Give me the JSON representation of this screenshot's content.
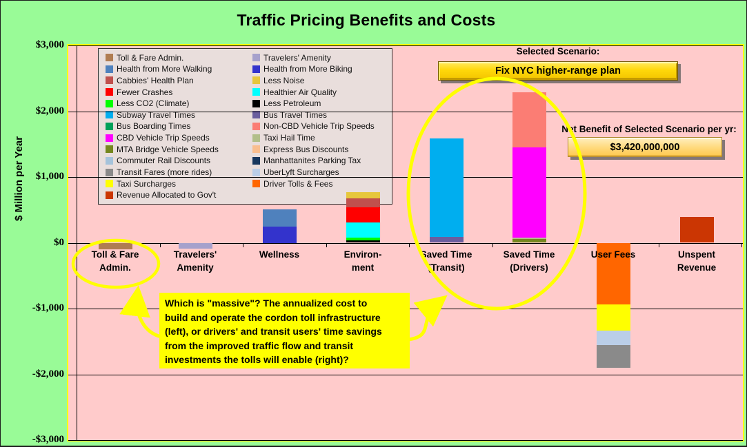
{
  "title": "Traffic Pricing Benefits and Costs",
  "scenario": {
    "label": "Selected Scenario:",
    "button_label": "Fix NYC higher-range plan",
    "net_benefit_label": "Net Benefit of Selected Scenario per yr:",
    "net_benefit_value": "$3,420,000,000"
  },
  "callout": {
    "text": "Which is \"massive\"? The annualized cost to\nbuild and operate the cordon toll infrastructure\n(left), or drivers' and transit users' time  savings\nfrom the improved traffic flow and transit\ninvestments the tolls will enable (right)?"
  },
  "colors": {
    "page_bg": "#99FB97",
    "plot_bg": "#FFCBCB",
    "plot_border": "#FFFF00",
    "highlight": "#FFFF00",
    "scenario_button": "#FFD80A",
    "net_benefit_box": "#FFD97A"
  },
  "legend": {
    "items": [
      {
        "label": "Toll & Fare Admin.",
        "color": "#B07D52"
      },
      {
        "label": "Travelers' Amenity",
        "color": "#A6A1CC"
      },
      {
        "label": "Health from More Walking",
        "color": "#4F81BD"
      },
      {
        "label": "Health from More Biking",
        "color": "#3333CC"
      },
      {
        "label": "Cabbies' Health Plan",
        "color": "#C0504D"
      },
      {
        "label": "Less Noise",
        "color": "#E6C73C"
      },
      {
        "label": "Fewer Crashes",
        "color": "#FF0000"
      },
      {
        "label": "Healthier Air Quality",
        "color": "#00FFFF"
      },
      {
        "label": "Less CO2 (Climate)",
        "color": "#00FF00"
      },
      {
        "label": "Less Petroleum",
        "color": "#000000"
      },
      {
        "label": "Subway Travel Times",
        "color": "#00AEEF"
      },
      {
        "label": "Bus Travel Times",
        "color": "#6A5E9E"
      },
      {
        "label": "Bus Boarding Times",
        "color": "#00A05A"
      },
      {
        "label": "Non-CBD Vehicle Trip Speeds",
        "color": "#FB7D74"
      },
      {
        "label": "CBD Vehicle Trip Speeds",
        "color": "#FF00FF"
      },
      {
        "label": "Taxi Hail Time",
        "color": "#B2BF8A"
      },
      {
        "label": "MTA Bridge Vehicle Speeds",
        "color": "#75871E"
      },
      {
        "label": "Express Bus Discounts",
        "color": "#F9BE8F"
      },
      {
        "label": "Commuter Rail Discounts",
        "color": "#A5C3DB"
      },
      {
        "label": "Manhattanites Parking Tax",
        "color": "#17375E"
      },
      {
        "label": "Transit Fares (more rides)",
        "color": "#8A8A8A"
      },
      {
        "label": "UberLyft Surcharges",
        "color": "#BACEE8"
      },
      {
        "label": "Taxi Surcharges",
        "color": "#FFFF00"
      },
      {
        "label": "Driver Tolls & Fees",
        "color": "#FF6600"
      },
      {
        "label": "Revenue Allocated to Gov't",
        "color": "#CB3603"
      }
    ]
  },
  "chart_data": {
    "type": "bar",
    "subtype": "stacked",
    "units": "$ million per year",
    "title": "Traffic Pricing Benefits and Costs",
    "ylabel": "$ Million per Year",
    "ylim": [
      -3000,
      3000
    ],
    "ytick_labels": [
      "$3,000",
      "$2,000",
      "$1,000",
      "$0",
      "-$1,000",
      "-$2,000",
      "-$3,000"
    ],
    "grid": true,
    "legend_position": "upper-left",
    "categories": [
      "Toll & Fare Admin.",
      "Travelers' Amenity",
      "Wellness",
      "Environment",
      "Saved Time (Transit)",
      "Saved Time (Drivers)",
      "User Fees",
      "Unspent Revenue"
    ],
    "tick_labels": [
      "Toll & Fare\nAdmin.",
      "Travelers'\nAmenity",
      "Wellness",
      "Environ-\nment",
      "Saved Time\n(Transit)",
      "Saved Time\n(Drivers)",
      "User Fees",
      "Unspent\nRevenue"
    ],
    "stacks": [
      {
        "category": "Toll & Fare Admin.",
        "total": -100,
        "segments": [
          {
            "name": "Toll & Fare Admin.",
            "value": -100,
            "color": "#B07D52"
          }
        ]
      },
      {
        "category": "Travelers' Amenity",
        "total": -85,
        "segments": [
          {
            "name": "Travelers' Amenity",
            "value": -85,
            "color": "#A6A1CC"
          }
        ]
      },
      {
        "category": "Wellness",
        "total": 510,
        "segments": [
          {
            "name": "Health from More Biking",
            "value": 250,
            "color": "#3333CC"
          },
          {
            "name": "Health from More Walking",
            "value": 260,
            "color": "#4F81BD"
          }
        ]
      },
      {
        "category": "Environment",
        "total": 770,
        "segments": [
          {
            "name": "Less Petroleum",
            "value": 35,
            "color": "#000000"
          },
          {
            "name": "Less CO2 (Climate)",
            "value": 45,
            "color": "#00FF00"
          },
          {
            "name": "Healthier Air Quality",
            "value": 230,
            "color": "#00FFFF"
          },
          {
            "name": "Fewer Crashes",
            "value": 230,
            "color": "#FF0000"
          },
          {
            "name": "Cabbies' Health Plan",
            "value": 135,
            "color": "#C0504D"
          },
          {
            "name": "Less Noise",
            "value": 95,
            "color": "#E6C73C"
          }
        ]
      },
      {
        "category": "Saved Time (Transit)",
        "total": 1585,
        "segments": [
          {
            "name": "Bus Travel Times",
            "value": 90,
            "color": "#6A5E9E"
          },
          {
            "name": "Subway Travel Times",
            "value": 1495,
            "color": "#00AEEF"
          }
        ]
      },
      {
        "category": "Saved Time (Drivers)",
        "total": 2290,
        "segments": [
          {
            "name": "MTA Bridge Vehicle Speeds",
            "value": 55,
            "color": "#75871E"
          },
          {
            "name": "Taxi Hail Time",
            "value": 20,
            "color": "#B2BF8A"
          },
          {
            "name": "CBD Vehicle Trip Speeds",
            "value": 1375,
            "color": "#FF00FF"
          },
          {
            "name": "Non-CBD Vehicle Trip Speeds",
            "value": 840,
            "color": "#FB7D74"
          }
        ]
      },
      {
        "category": "User Fees",
        "total": -1900,
        "segments": [
          {
            "name": "Driver Tolls & Fees",
            "value": -940,
            "color": "#FF6600"
          },
          {
            "name": "Taxi Surcharges",
            "value": -395,
            "color": "#FFFF00"
          },
          {
            "name": "UberLyft Surcharges",
            "value": -225,
            "color": "#BACEE8"
          },
          {
            "name": "Transit Fares (more rides)",
            "value": -340,
            "color": "#8A8A8A"
          }
        ]
      },
      {
        "category": "Unspent Revenue",
        "total": 390,
        "segments": [
          {
            "name": "Revenue Allocated to Gov't",
            "value": 390,
            "color": "#CB3603"
          }
        ]
      }
    ]
  }
}
